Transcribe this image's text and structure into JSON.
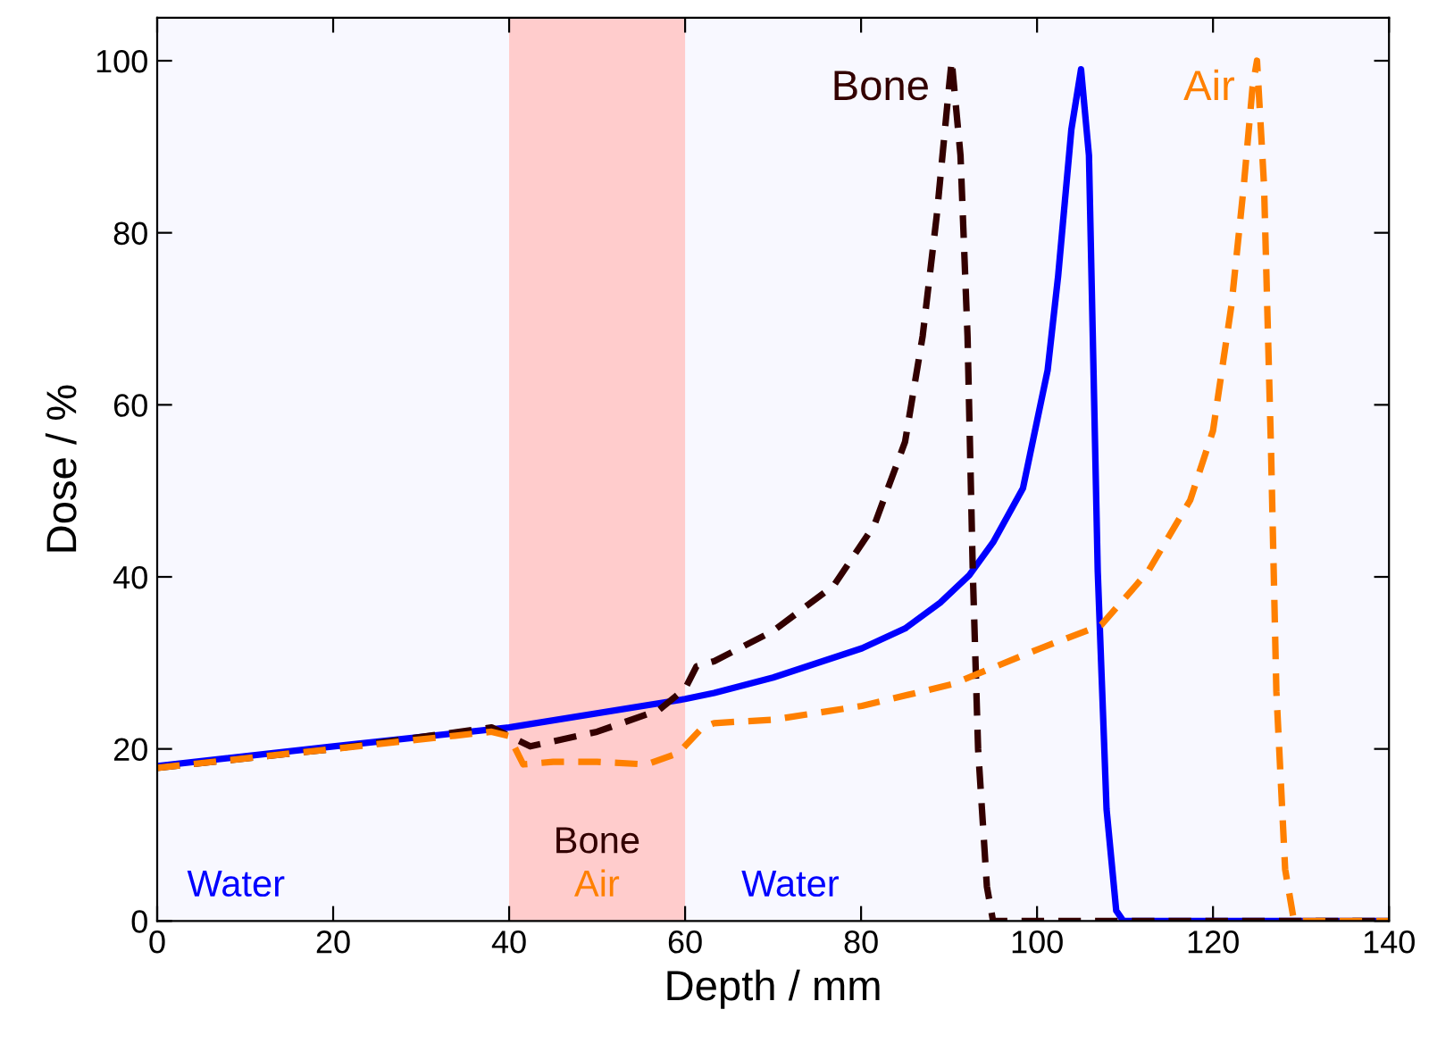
{
  "chart_data": {
    "type": "line",
    "xlabel": "Depth / mm",
    "ylabel": "Dose / %",
    "xlim": [
      0,
      140
    ],
    "ylim": [
      0,
      105
    ],
    "xticks": [
      0,
      20,
      40,
      60,
      80,
      100,
      120,
      140
    ],
    "yticks": [
      0,
      20,
      40,
      60,
      80,
      100
    ],
    "grid": false,
    "legend": false,
    "marker": "none",
    "bands": [
      {
        "axis": "x",
        "from": 40,
        "to": 60,
        "color": "#ffcccc"
      }
    ],
    "annotations": [
      "Water",
      "Bone",
      "Air",
      "Water"
    ],
    "series": [
      {
        "color": "#0000ff",
        "line_style": "solid",
        "x": [
          0,
          20,
          40,
          60,
          63.3,
          70,
          80.1,
          85,
          89,
          92.3,
          95,
          98.4,
          101.2,
          102.4,
          103.9,
          105,
          105.9,
          106.9,
          107.9,
          109,
          109.8,
          140
        ],
        "values": [
          18,
          20.3,
          22.5,
          25.8,
          26.5,
          28.3,
          31.7,
          34,
          37,
          40.2,
          44,
          50.3,
          64,
          75,
          92,
          99,
          89,
          40.6,
          13,
          1.2,
          0,
          0
        ]
      },
      {
        "name": "Bone",
        "color": "#330000",
        "line_style": "dashed",
        "x": [
          0,
          20,
          38,
          40.4,
          42.4,
          50,
          57,
          60,
          61.3,
          63.3,
          70,
          76.9,
          81.5,
          85,
          87,
          88.6,
          90,
          90.3,
          91.3,
          92.1,
          92.7,
          93.3,
          94.3,
          95,
          140
        ],
        "values": [
          17.8,
          20,
          22.5,
          21.3,
          20.3,
          22,
          24.5,
          27,
          29.6,
          30.2,
          33.7,
          39,
          46,
          55.7,
          68,
          82,
          97,
          100,
          89,
          68,
          40.5,
          20,
          4,
          0,
          0
        ]
      },
      {
        "name": "Air",
        "color": "#ff8000",
        "line_style": "dashed",
        "x": [
          0,
          20,
          38,
          40,
          41.6,
          45,
          50,
          55.6,
          59.2,
          61.9,
          63.3,
          70,
          80.1,
          90.3,
          100.4,
          107.3,
          112.6,
          117.4,
          120,
          122.1,
          123.5,
          124.5,
          125,
          125.8,
          126.6,
          127.2,
          128.2,
          129.2,
          140
        ],
        "values": [
          17.8,
          20,
          22,
          21.5,
          18.2,
          18.5,
          18.5,
          18.2,
          19.5,
          22.4,
          23,
          23.4,
          25,
          27.5,
          31.7,
          34.4,
          40.6,
          48.9,
          57,
          71.6,
          85.5,
          97,
          100,
          85.5,
          54.5,
          26.7,
          6,
          0,
          0
        ]
      }
    ]
  }
}
